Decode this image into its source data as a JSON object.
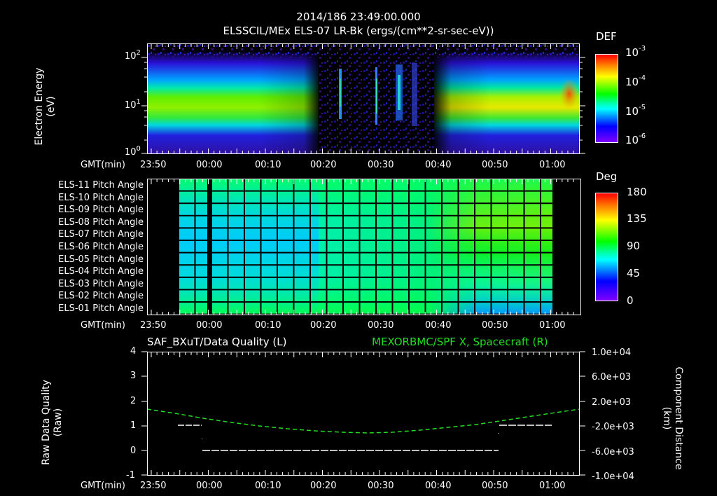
{
  "header": {
    "timestamp": "2014/186 23:49:00.000",
    "panel1_title": "ELSSCIL/MEx ELS-07 LR-Bk  (ergs/(cm**2-sr-sec-eV))"
  },
  "time_axis": {
    "label": "GMT(min)",
    "ticks": [
      "23:50",
      "00:00",
      "00:10",
      "00:20",
      "00:30",
      "00:40",
      "00:50",
      "01:00"
    ]
  },
  "panel1": {
    "ylabel_line1": "Electron Energy",
    "ylabel_line2": "(eV)",
    "yticks": [
      {
        "base": "10",
        "exp": "2"
      },
      {
        "base": "10",
        "exp": "1"
      },
      {
        "base": "10",
        "exp": "0"
      }
    ],
    "colorbar": {
      "label": "DEF",
      "ticks": [
        {
          "base": "10",
          "exp": "-3"
        },
        {
          "base": "10",
          "exp": "-4"
        },
        {
          "base": "10",
          "exp": "-5"
        },
        {
          "base": "10",
          "exp": "-6"
        }
      ]
    }
  },
  "panel2": {
    "row_labels": [
      "ELS-11 Pitch Angle",
      "ELS-10 Pitch Angle",
      "ELS-09 Pitch Angle",
      "ELS-08 Pitch Angle",
      "ELS-07 Pitch Angle",
      "ELS-06 Pitch Angle",
      "ELS-05 Pitch Angle",
      "ELS-04 Pitch Angle",
      "ELS-03 Pitch Angle",
      "ELS-02 Pitch Angle",
      "ELS-01 Pitch Angle"
    ],
    "colorbar": {
      "label": "Deg",
      "ticks": [
        "180",
        "135",
        "90",
        "45",
        "0"
      ]
    }
  },
  "panel3": {
    "title_left": "SAF_BXuT/Data Quality (L)",
    "title_right": "MEXORBMC/SPF X, Spacecraft (R)",
    "ylabel_left_line1": "Raw Data Quality",
    "ylabel_left_line2": "(Raw)",
    "ylabel_right_line1": "Component Distance",
    "ylabel_right_line2": "(km)",
    "yticks_left": [
      "4",
      "3",
      "2",
      "1",
      "0",
      "-1"
    ],
    "yticks_right": [
      "1.0e+04",
      "6.0e+03",
      "2.0e+03",
      "-2.0e+03",
      "-6.0e+03",
      "-1.0e+04"
    ]
  },
  "colors": {
    "background": "#000000",
    "axis": "#ffffff",
    "spacecraft_line": "#22dd22"
  },
  "chart_data": [
    {
      "type": "heatmap",
      "title": "ELSSCIL/MEx ELS-07 LR-Bk (ergs/(cm**2-sr-sec-eV))",
      "subtitle": "2014/186 23:49:00.000",
      "xlabel": "GMT(min)",
      "ylabel": "Electron Energy (eV)",
      "x_ticks": [
        "23:50",
        "00:00",
        "00:10",
        "00:20",
        "00:30",
        "00:40",
        "00:50",
        "01:00"
      ],
      "y_scale": "log",
      "ylim": [
        1,
        200
      ],
      "y_ticks": [
        "10^0",
        "10^1",
        "10^2"
      ],
      "colorbar": {
        "label": "DEF",
        "scale": "log",
        "range": [
          1e-06,
          0.001
        ],
        "ticks": [
          "10^-6",
          "10^-5",
          "10^-4",
          "10^-3"
        ]
      },
      "description": "Broad band of enhanced DEF (~1e-4) centered near 10 eV from 23:50 to ~00:14, sparse data with narrow vertical streaks at ~00:19, ~00:29, ~00:33 and ~00:38, broad band returns from ~00:40 to 01:05 with peak near 1e-3 around 01:04."
    },
    {
      "type": "heatmap",
      "xlabel": "GMT(min)",
      "x_ticks": [
        "23:50",
        "00:00",
        "00:10",
        "00:20",
        "00:30",
        "00:40",
        "00:50",
        "01:00"
      ],
      "categories": [
        "ELS-11",
        "ELS-10",
        "ELS-09",
        "ELS-08",
        "ELS-07",
        "ELS-06",
        "ELS-05",
        "ELS-04",
        "ELS-03",
        "ELS-02",
        "ELS-01"
      ],
      "colorbar": {
        "label": "Deg",
        "range": [
          0,
          180
        ],
        "ticks": [
          "0",
          "45",
          "90",
          "135",
          "180"
        ]
      },
      "data_window": [
        "23:55",
        "01:00"
      ],
      "description": "Pitch angles ~70-90 deg early (central anodes ~60 deg), ~80-100 deg mid-pass, upper anodes rising to ~110 deg and lower anodes falling to ~50 deg after 00:45. Gap at ~00:00."
    },
    {
      "type": "line",
      "title_left": "SAF_BXuT/Data Quality (L)",
      "title_right": "MEXORBMC/SPF X, Spacecraft (R)",
      "xlabel": "GMT(min)",
      "x_ticks": [
        "23:50",
        "00:00",
        "00:10",
        "00:20",
        "00:30",
        "00:40",
        "00:50",
        "01:00"
      ],
      "ylabel": "Raw Data Quality (Raw)",
      "ylim": [
        -1,
        4
      ],
      "y2label": "Component Distance (km)",
      "y2lim": [
        -10000,
        10000
      ],
      "series": [
        {
          "name": "Data Quality",
          "axis": "left",
          "x": [
            "23:55",
            "23:59",
            "23:59",
            "00:51",
            "00:51",
            "01:00"
          ],
          "values": [
            1,
            1,
            0,
            0,
            1,
            1
          ]
        },
        {
          "name": "SPF X Spacecraft",
          "axis": "right",
          "style": "dashed",
          "x": [
            "23:50",
            "00:00",
            "00:10",
            "00:20",
            "00:26",
            "00:30",
            "00:40",
            "00:50",
            "01:00",
            "01:05"
          ],
          "values": [
            1200,
            400,
            -600,
            -1300,
            -1500,
            -1400,
            -800,
            0,
            800,
            1200
          ]
        }
      ]
    }
  ]
}
